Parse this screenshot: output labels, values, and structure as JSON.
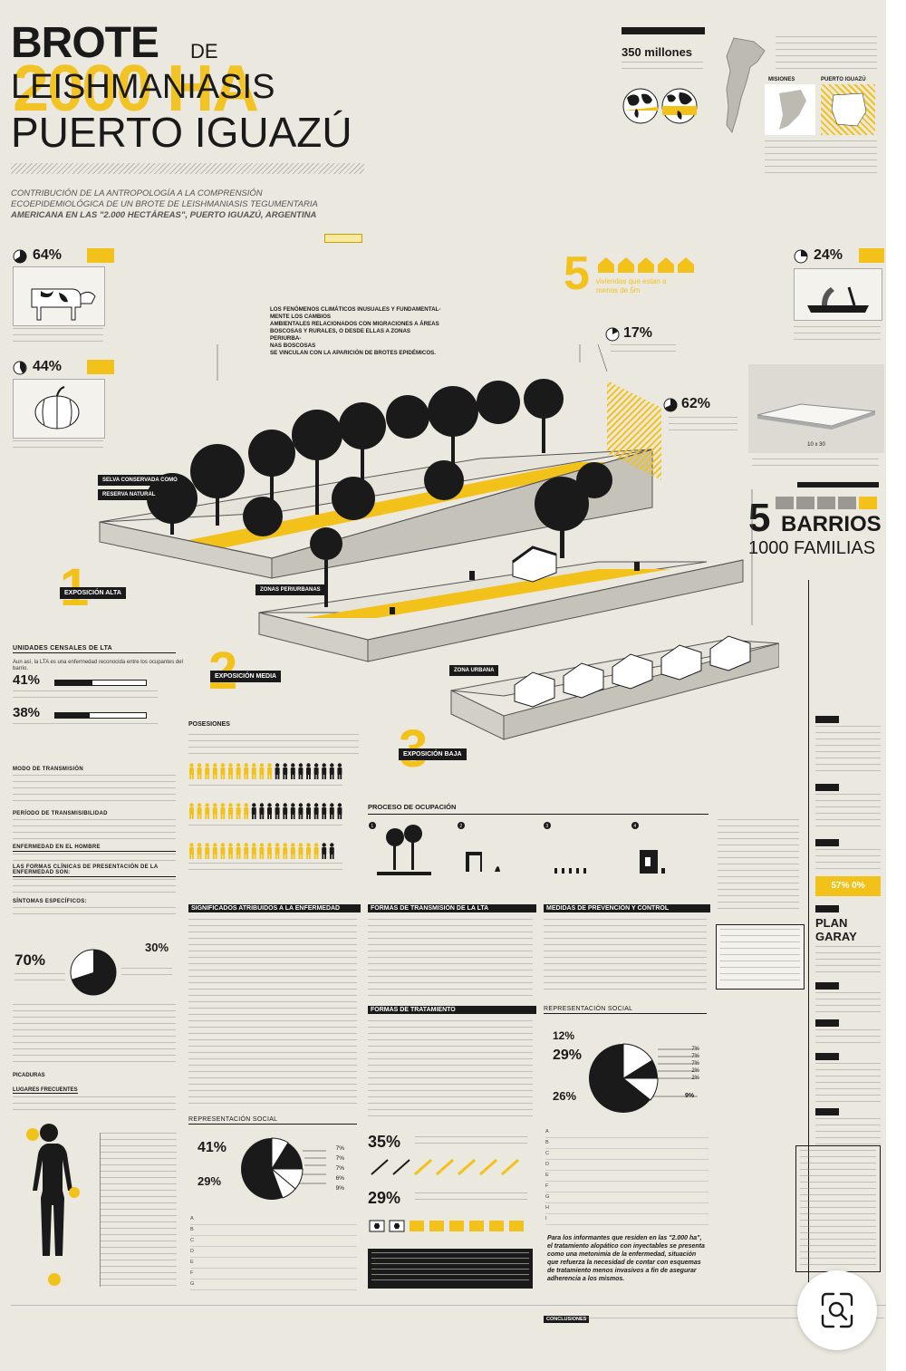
{
  "header": {
    "title_line1": "BROTE",
    "title_de": "DE",
    "title_line2": "LEISHMANIASIS",
    "title_line3": "PUERTO IGUAZÚ",
    "bg_text": "2000 HA",
    "subtitle_line1": "CONTRIBUCIÓN DE LA ANTROPOLOGÍA A LA COMPRENSIÓN",
    "subtitle_line2": "ECOEPIDEMIOLÓGICA DE UN BROTE DE LEISHMANIASIS TEGUMENTARIA",
    "subtitle_line3": "AMERICANA EN LAS \"2.000 HECTÁREAS\", PUERTO IGUAZÚ, ARGENTINA"
  },
  "world": {
    "stat": "350 millones"
  },
  "map_labels": {
    "misiones": "MISIONES",
    "iguazu": "PUERTO IGUAZÚ"
  },
  "stats": {
    "cow": "64%",
    "pumpkin": "44%",
    "tools": "24%",
    "houses_number": "5",
    "houses_caption_1": "viviendas que estan a",
    "houses_caption_2": "menos de 5m",
    "dist17": "17%",
    "dist62": "62%",
    "plot_size": "10 x 30"
  },
  "callouts": {
    "climate_1": "LOS FENÓMENOS CLIMÁTICOS INUSUALES Y FUNDAMENTAL-",
    "climate_2": "MENTE LOS CAMBIOS",
    "climate_3": "AMBIENTALES RELACIONADOS CON MIGRACIONES A ÁREAS",
    "climate_4": "BOSCOSAS Y RURALES, O DESDE ELLAS A ZONAS PERIURBA-",
    "climate_5": "NAS BOSCOSAS",
    "climate_6": "SE VINCULAN CON LA APARICIÓN DE BROTES EPIDÉMICOS."
  },
  "zones": {
    "selva_1": "SELVA CONSERVADA COMO",
    "selva_2": "RESERVA NATURAL",
    "periurbana": "ZONAS PERIURBANAS",
    "urbana": "ZONA URBANA"
  },
  "exposure": {
    "n1": "1",
    "l1": "EXPOSICIÓN ALTA",
    "n2": "2",
    "l2": "EXPOSICIÓN MEDIA",
    "n3": "3",
    "l3": "EXPOSICIÓN BAJA"
  },
  "barrios": {
    "count": "5",
    "label": "BARRIOS",
    "families": "1000 FAMILIAS"
  },
  "censal": {
    "title": "UNIDADES CENSALES DE LTA",
    "intro": "Aun así, la LTA es una enfermedad reconocida entre los ocupantes del barrio.",
    "p41": "41%",
    "p41_bar": 0.41,
    "p38": "38%",
    "p38_bar": 0.38
  },
  "left_sections": {
    "modo": "MODO DE TRANSMISIÓN",
    "periodo": "PERÍODO DE TRANSMISIBILIDAD",
    "enfermedad": "ENFERMEDAD EN EL HOMBRE",
    "formas": "LAS FORMAS CLÍNICAS DE PRESENTACIÓN DE LA ENFERMEDAD SON:",
    "sintomas": "SÍNTOMAS ESPECÍFICOS:",
    "picaduras": "PICADURAS",
    "lugares": "LUGARES FRECUENTES"
  },
  "left_pie": {
    "big": "70%",
    "small": "30%",
    "value": 0.7
  },
  "posesiones": {
    "title": "POSESIONES"
  },
  "proceso": {
    "title": "PROCESO DE OCUPACIÓN",
    "steps": [
      "1",
      "2",
      "3",
      "4"
    ]
  },
  "columns": {
    "significados": "SIGNIFICADOS ATRIBUIDOS A LA ENFERMEDAD",
    "formas_trans": "FORMAS DE TRANSMISIÓN DE LA LTA",
    "medidas": "MEDIDAS DE PREVENCIÓN Y CONTROL",
    "formas_trat": "FORMAS DE TRATAMIENTO",
    "rep_social": "REPRESENTACIÓN SOCIAL"
  },
  "rep_left": {
    "big": "41%",
    "second": "29%",
    "small_vals": [
      "7%",
      "7%",
      "7%",
      "6%",
      "9%"
    ],
    "letters": [
      "A",
      "B",
      "C",
      "D",
      "E",
      "F",
      "G"
    ]
  },
  "rep_right": {
    "a": "12%",
    "b": "29%",
    "c": "26%",
    "d": "9%",
    "small_vals": [
      "7%",
      "7%",
      "7%",
      "2%",
      "2%"
    ],
    "letters": [
      "A",
      "B",
      "C",
      "D",
      "E",
      "F",
      "G",
      "H",
      "I"
    ]
  },
  "treatment": {
    "p35": "35%",
    "p29": "29%"
  },
  "timeline": {
    "plan": "PLAN GARAY",
    "highlight": "57% 0%"
  },
  "quote": {
    "l1": "Para los informantes que residen en las \"2.000 ha\",",
    "l2": "el tratamiento alopático con inyectables se presenta",
    "l3": "como una metonimia de la enfermedad, situación",
    "l4": "que refuerza la necesidad de contar con esquemas",
    "l5": "de tratamiento menos invasivos a fin de asegurar",
    "l6": "adherencia a los mismos."
  },
  "footer": {
    "tag": "CONCLUSIONES"
  },
  "colors": {
    "accent": "#f2c21b",
    "ink": "#1a1a1a",
    "paper": "#ebe8df"
  },
  "icons": {
    "zoom": "search-zoom-icon"
  }
}
